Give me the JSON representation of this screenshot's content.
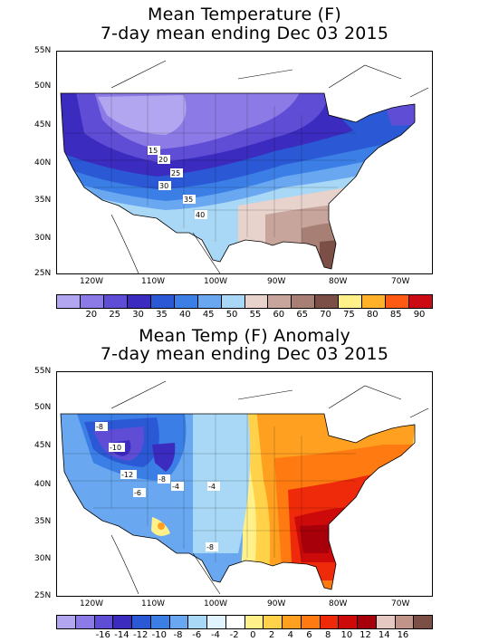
{
  "top": {
    "title_line1": "Mean Temperature (F)",
    "title_line2": "7-day mean ending Dec 03 2015",
    "lat_labels": [
      "55N",
      "50N",
      "45N",
      "40N",
      "35N",
      "30N",
      "25N"
    ],
    "lon_labels": [
      "120W",
      "110W",
      "100W",
      "90W",
      "80W",
      "70W"
    ],
    "contour_labels": [
      "15",
      "20",
      "25",
      "30",
      "35",
      "40"
    ],
    "colorbar": {
      "colors": [
        "#b3a6f0",
        "#8c7be6",
        "#5f4dd6",
        "#3b2bbf",
        "#2b59d6",
        "#3b7fe6",
        "#69a8f0",
        "#a8d8f5",
        "#e8d2cc",
        "#c8a59c",
        "#a87f74",
        "#7b4f46",
        "#fff08a",
        "#ffb12a",
        "#ff5a14",
        "#cc0a14"
      ],
      "labels": [
        "20",
        "25",
        "30",
        "35",
        "40",
        "45",
        "50",
        "55",
        "60",
        "65",
        "70",
        "75",
        "80",
        "85",
        "90"
      ]
    }
  },
  "bottom": {
    "title_line1": "Mean Temp (F) Anomaly",
    "title_line2": "7-day mean ending Dec 03 2015",
    "lat_labels": [
      "55N",
      "50N",
      "45N",
      "40N",
      "35N",
      "30N",
      "25N"
    ],
    "lon_labels": [
      "120W",
      "110W",
      "100W",
      "90W",
      "80W",
      "70W"
    ],
    "contour_labels": [
      "-8",
      "-10",
      "-12",
      "-8",
      "-6",
      "-4",
      "-4",
      "-8"
    ],
    "colorbar": {
      "colors": [
        "#b3a6f0",
        "#8c7be6",
        "#5f4dd6",
        "#3b2bbf",
        "#2b59d6",
        "#3b7fe6",
        "#69a8f0",
        "#a8d8f5",
        "#dff4ff",
        "#ffffff",
        "#fff08a",
        "#ffd24a",
        "#ffa020",
        "#ff7a10",
        "#ee2a0a",
        "#cc0a0a",
        "#a8000a",
        "#e6c8c2",
        "#c09488",
        "#7b4f46"
      ],
      "labels": [
        "-16",
        "-14",
        "-12",
        "-10",
        "-8",
        "-6",
        "-4",
        "-2",
        "0",
        "2",
        "4",
        "6",
        "8",
        "10",
        "12",
        "14",
        "16"
      ]
    }
  }
}
